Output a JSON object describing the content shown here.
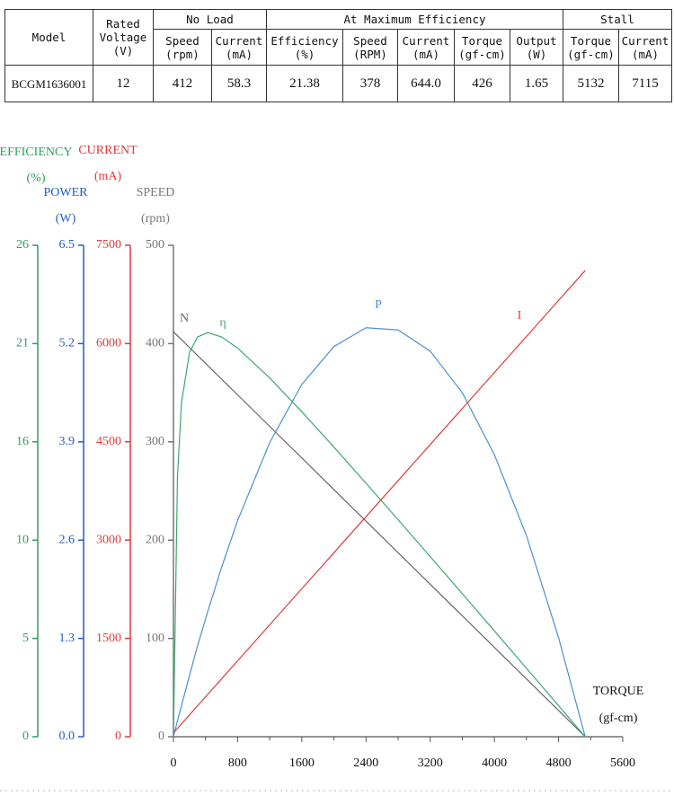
{
  "table": {
    "group_headers": [
      "Model",
      "Rated\nVoltage\n(V)",
      "No Load",
      "At Maximum Efficiency",
      "Stall"
    ],
    "headers": [
      "Speed\n(rpm)",
      "Current\n(mA)",
      "Efficiency\n(%)",
      "Speed\n(RPM)",
      "Current\n(mA)",
      "Torque\n(gf-cm)",
      "Output\n(W)",
      "Torque\n(gf-cm)",
      "Current\n(mA)"
    ],
    "rows": [
      [
        "BCGM1636001",
        12,
        412,
        58.3,
        21.38,
        378,
        "644.0",
        426,
        1.65,
        5132,
        7115
      ]
    ]
  },
  "chart_data": {
    "type": "line",
    "x_label": "TORQUE",
    "x_unit": "(gf-cm)",
    "xlim": [
      0,
      5600
    ],
    "xticks": [
      0,
      800,
      1600,
      2400,
      3200,
      4000,
      4800,
      5600
    ],
    "axes": {
      "efficiency": {
        "label": "EFFICIENCY",
        "unit": "(%)",
        "color": "#2e9e5e",
        "lim": [
          0,
          26
        ],
        "ticks": [
          0,
          {
            "value": 5.2,
            "label": "5"
          },
          {
            "value": 10.4,
            "label": "10"
          },
          {
            "value": 15.6,
            "label": "16"
          },
          {
            "value": 20.8,
            "label": "21"
          },
          26
        ]
      },
      "power": {
        "label": "POWER",
        "unit": "(W)",
        "color": "#1f5fc4",
        "lim": [
          0,
          6.5
        ],
        "ticks": [
          {
            "value": 0,
            "label": "0.0"
          },
          1.3,
          2.6,
          3.9,
          5.2,
          6.5
        ]
      },
      "current": {
        "label": "CURRENT",
        "unit": "(mA)",
        "color": "#e03a3a",
        "lim": [
          0,
          7500
        ],
        "ticks": [
          0,
          1500,
          3000,
          4500,
          6000,
          7500
        ]
      },
      "speed": {
        "label": "SPEED",
        "unit": "(rpm)",
        "color": "#777777",
        "lim": [
          0,
          500
        ],
        "ticks": [
          0,
          100,
          200,
          300,
          400,
          500
        ]
      }
    },
    "x": [
      0,
      50,
      100,
      200,
      300,
      426,
      600,
      800,
      1200,
      1600,
      2000,
      2400,
      2800,
      3200,
      3600,
      4000,
      4400,
      4800,
      5132
    ],
    "series": [
      {
        "name": "N",
        "axis": "speed",
        "color": "#666666",
        "values": [
          412,
          408.0,
          404.0,
          395.9,
          387.9,
          377.8,
          363.8,
          347.8,
          315.7,
          283.6,
          251.4,
          219.3,
          187.2,
          155.1,
          123.0,
          90.9,
          58.8,
          26.7,
          0
        ]
      },
      {
        "name": "η",
        "axis": "efficiency",
        "color": "#3aaa6a",
        "values": [
          0,
          13.74,
          17.66,
          20.33,
          21.15,
          21.38,
          21.15,
          20.56,
          18.98,
          17.19,
          15.32,
          13.41,
          11.48,
          9.53,
          7.57,
          5.6,
          3.62,
          1.64,
          0
        ]
      },
      {
        "name": "P",
        "axis": "power",
        "color": "#4a8fd6",
        "values": [
          0,
          0.21,
          0.41,
          0.81,
          1.2,
          1.65,
          2.24,
          2.86,
          3.89,
          4.66,
          5.16,
          5.41,
          5.38,
          5.1,
          4.55,
          3.73,
          2.66,
          1.31,
          0
        ]
      },
      {
        "name": "I",
        "axis": "current",
        "color": "#e03a3a",
        "values": [
          58.3,
          127.1,
          195.8,
          333.3,
          470.8,
          644.0,
          883.3,
          1158.3,
          1708.3,
          2258.4,
          2808.4,
          3358.4,
          3908.4,
          4458.4,
          5008.4,
          5558.5,
          6108.5,
          6658.5,
          7115
        ]
      }
    ]
  }
}
